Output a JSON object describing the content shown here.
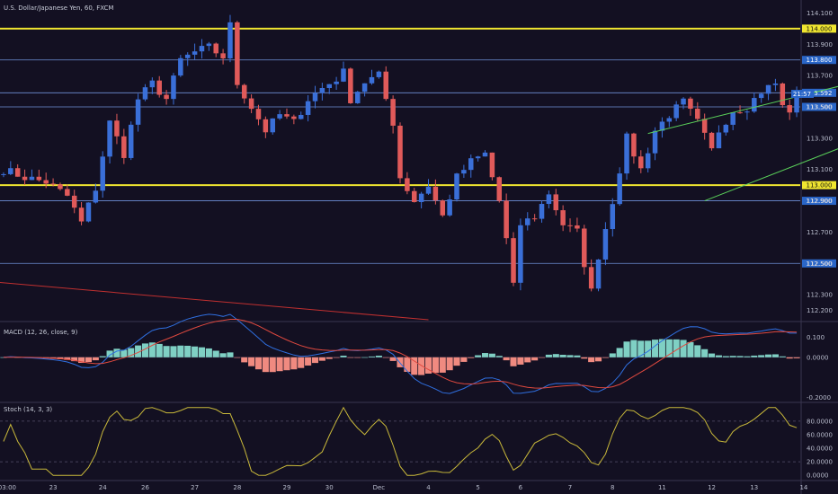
{
  "chart_data": [
    {
      "type": "candlestick",
      "title": "U.S. Dollar/Japanese Yen, 60, FXCM",
      "ylim": [
        112.14,
        114.16
      ],
      "y_ticks": [
        "114.100",
        "113.900",
        "113.700",
        "113.500",
        "113.300",
        "113.100",
        "112.900",
        "112.700",
        "112.500",
        "112.300",
        "112.200"
      ],
      "y_tick_values": [
        114.1,
        113.9,
        113.7,
        113.5,
        113.3,
        113.1,
        112.9,
        112.7,
        112.5,
        112.3,
        112.2
      ],
      "x_ticks": [
        "03:00",
        "23",
        "24",
        "26",
        "27",
        "28",
        "29",
        "30",
        "Dec",
        "4",
        "5",
        "6",
        "7",
        "8",
        "11",
        "12",
        "13",
        "14"
      ],
      "x_tick_positions": [
        0.5,
        7,
        14,
        20,
        27,
        33,
        40,
        46,
        53,
        60,
        67,
        73,
        80,
        86,
        93,
        100,
        106,
        113
      ],
      "anchors": [
        [
          0,
          113.1
        ],
        [
          3,
          113.05
        ],
        [
          6,
          113.02
        ],
        [
          9,
          112.93
        ],
        [
          11,
          112.76
        ],
        [
          13,
          112.98
        ],
        [
          15,
          113.4
        ],
        [
          17,
          113.2
        ],
        [
          19,
          113.55
        ],
        [
          21,
          113.65
        ],
        [
          23,
          113.55
        ],
        [
          25,
          113.8
        ],
        [
          27,
          113.85
        ],
        [
          29,
          113.88
        ],
        [
          31,
          113.82
        ],
        [
          32,
          114.02
        ],
        [
          33,
          113.65
        ],
        [
          35,
          113.5
        ],
        [
          37,
          113.35
        ],
        [
          39,
          113.45
        ],
        [
          41,
          113.4
        ],
        [
          43,
          113.55
        ],
        [
          45,
          113.62
        ],
        [
          47,
          113.68
        ],
        [
          48,
          113.72
        ],
        [
          49,
          113.55
        ],
        [
          51,
          113.66
        ],
        [
          53,
          113.7
        ],
        [
          55,
          113.4
        ],
        [
          56,
          113.05
        ],
        [
          58,
          112.9
        ],
        [
          60,
          113.0
        ],
        [
          62,
          112.8
        ],
        [
          64,
          113.05
        ],
        [
          66,
          113.15
        ],
        [
          68,
          113.2
        ],
        [
          70,
          112.9
        ],
        [
          71,
          112.65
        ],
        [
          72,
          112.35
        ],
        [
          73,
          112.75
        ],
        [
          75,
          112.8
        ],
        [
          77,
          112.95
        ],
        [
          79,
          112.75
        ],
        [
          81,
          112.7
        ],
        [
          82,
          112.5
        ],
        [
          83,
          112.32
        ],
        [
          84,
          112.55
        ],
        [
          86,
          112.9
        ],
        [
          88,
          113.3
        ],
        [
          89,
          113.2
        ],
        [
          90,
          113.1
        ],
        [
          92,
          113.35
        ],
        [
          94,
          113.45
        ],
        [
          96,
          113.53
        ],
        [
          98,
          113.4
        ],
        [
          100,
          113.22
        ],
        [
          101,
          113.35
        ],
        [
          103,
          113.48
        ],
        [
          105,
          113.5
        ],
        [
          107,
          113.6
        ],
        [
          109,
          113.65
        ],
        [
          110,
          113.5
        ],
        [
          111,
          113.48
        ],
        [
          112,
          113.58
        ]
      ],
      "n_bars": 113,
      "last_price": "113.592",
      "countdown": "21:57",
      "horizontal_levels": [
        {
          "value": 114.0,
          "label": "114.000",
          "color": "#f0e630",
          "style": "thick"
        },
        {
          "value": 113.8,
          "label": "113.800",
          "color": "#6f8fd8",
          "style": "thin"
        },
        {
          "value": 113.59,
          "label": "113.592",
          "color": "#6f8fd8",
          "style": "thin"
        },
        {
          "value": 113.5,
          "label": "113.500",
          "color": "#6f8fd8",
          "style": "thin"
        },
        {
          "value": 113.0,
          "label": "113.000",
          "color": "#f0e630",
          "style": "thick"
        },
        {
          "value": 112.9,
          "label": "112.900",
          "color": "#6f8fd8",
          "style": "thin"
        },
        {
          "value": 112.5,
          "label": "112.500",
          "color": "#6f8fd8",
          "style": "thin"
        }
      ],
      "trendlines": [
        {
          "from": [
            91,
            113.33
          ],
          "to": [
            133,
            113.8
          ],
          "color": "#5ad05a"
        },
        {
          "from": [
            99,
            112.9
          ],
          "to": [
            133,
            113.5
          ],
          "color": "#5ad05a"
        },
        {
          "from": [
            -1,
            112.38
          ],
          "to": [
            60,
            112.14
          ],
          "color": "#c03030"
        }
      ],
      "up_color": "#3a6fd8",
      "down_color": "#e05a5a"
    },
    {
      "type": "histogram+line",
      "title": "MACD (12, 26, close, 9)",
      "ylim": [
        -0.22,
        0.16
      ],
      "y_ticks": [
        "0.100",
        "0.0000",
        "-0.2000"
      ],
      "y_tick_values": [
        0.1,
        0.0,
        -0.2
      ],
      "series_colors": {
        "macd": "#2f6fe0",
        "signal": "#e0493f",
        "hist_pos": "#7fd0c4",
        "hist_neg": "#f08a80"
      }
    },
    {
      "type": "line",
      "title": "Stoch (14, 3, 3)",
      "ylim": [
        -5,
        105
      ],
      "y_ticks": [
        "80.0000",
        "60.0000",
        "40.0000",
        "20.0000",
        "0.0000"
      ],
      "y_tick_values": [
        80,
        60,
        40,
        20,
        0
      ],
      "bands": [
        80,
        20
      ],
      "line_color": "#c8b83a"
    }
  ]
}
